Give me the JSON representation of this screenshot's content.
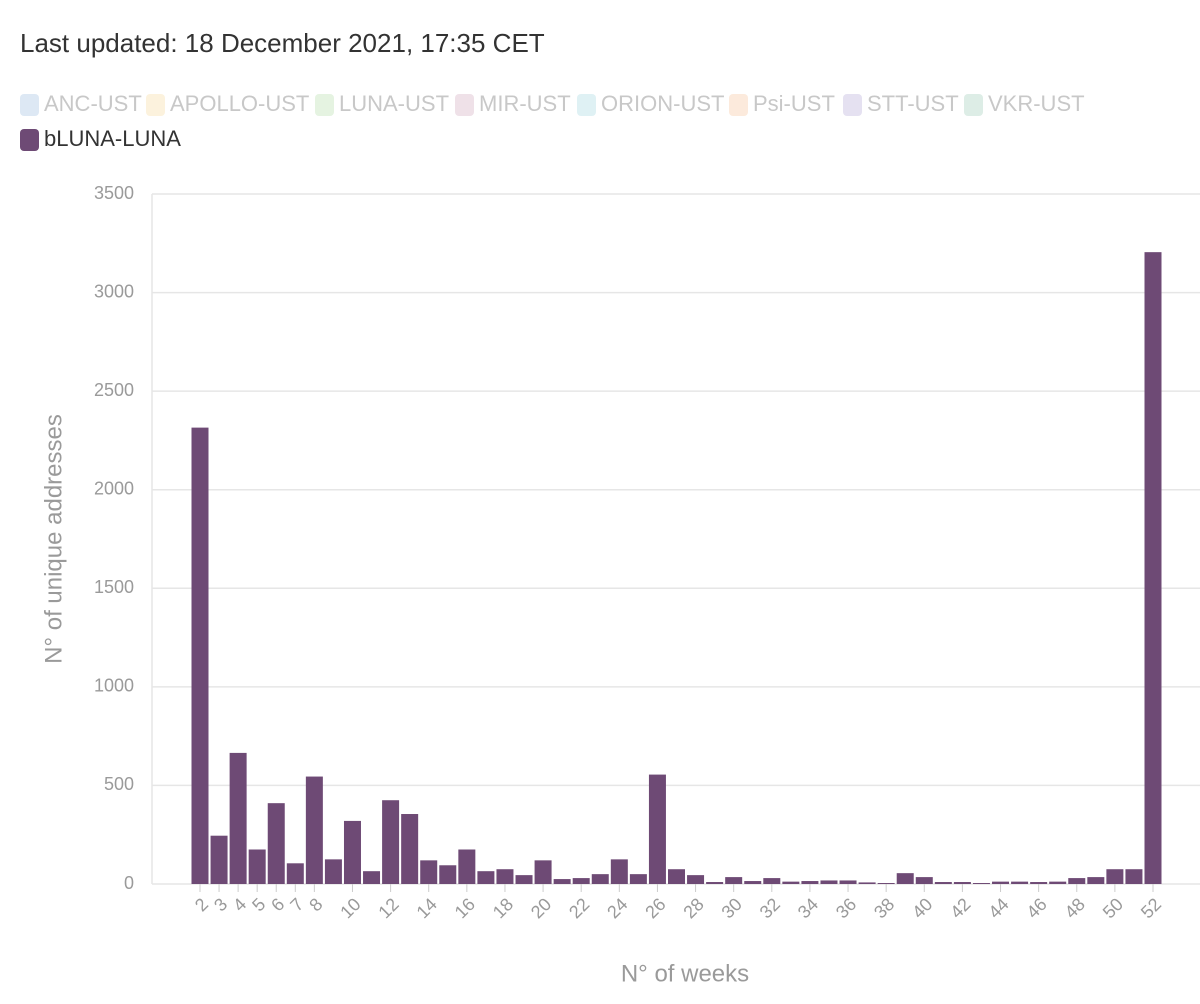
{
  "chart_data": {
    "type": "bar",
    "title": "Last updated: 18 December 2021, 17:35 CET",
    "x_label": "N° of weeks",
    "y_label": "N° of unique addresses",
    "categories": [
      2,
      3,
      4,
      5,
      6,
      7,
      8,
      null,
      10,
      null,
      12,
      null,
      14,
      null,
      16,
      null,
      18,
      null,
      20,
      null,
      22,
      null,
      24,
      null,
      26,
      null,
      28,
      null,
      30,
      null,
      32,
      null,
      34,
      null,
      36,
      null,
      38,
      null,
      40,
      null,
      42,
      null,
      44,
      null,
      46,
      null,
      48,
      null,
      50,
      null,
      52
    ],
    "series": [
      {
        "name": "ANC-UST",
        "color": "#8fb3d9",
        "visible": false
      },
      {
        "name": "APOLLO-UST",
        "color": "#f5d58f",
        "visible": false
      },
      {
        "name": "LUNA-UST",
        "color": "#a9d69a",
        "visible": false
      },
      {
        "name": "MIR-UST",
        "color": "#c99ab4",
        "visible": false
      },
      {
        "name": "ORION-UST",
        "color": "#95d0d9",
        "visible": false
      },
      {
        "name": "Psi-UST",
        "color": "#f5b98a",
        "visible": false
      },
      {
        "name": "STT-UST",
        "color": "#a99ad0",
        "visible": false
      },
      {
        "name": "VKR-UST",
        "color": "#8ec3ad",
        "visible": false
      },
      {
        "name": "bLUNA-LUNA",
        "color": "#6e4a75",
        "visible": true,
        "values": [
          2315,
          245,
          665,
          175,
          410,
          105,
          545,
          125,
          320,
          65,
          425,
          355,
          120,
          95,
          175,
          65,
          75,
          45,
          120,
          25,
          30,
          50,
          125,
          50,
          555,
          75,
          45,
          10,
          35,
          15,
          30,
          12,
          15,
          18,
          18,
          8,
          5,
          55,
          35,
          10,
          10,
          5,
          12,
          12,
          10,
          12,
          30,
          35,
          75,
          75,
          3205
        ]
      }
    ],
    "ylim": [
      0,
      3500
    ],
    "yticks": [
      0,
      500,
      1000,
      1500,
      2000,
      2500,
      3000,
      3500
    ],
    "grid": true
  }
}
